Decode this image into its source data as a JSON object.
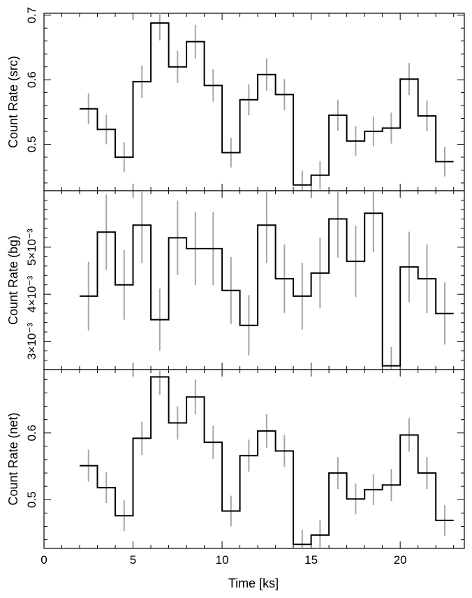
{
  "chart_data": {
    "type": "line",
    "xlabel": "Time [ks]",
    "x_ticks": [
      "0",
      "5",
      "10",
      "15",
      "20"
    ],
    "x_tick_values": [
      0,
      5,
      10,
      15,
      20
    ],
    "xlim": [
      0,
      23.6
    ],
    "bin_edges": [
      2.0,
      3.0,
      4.0,
      5.0,
      6.0,
      7.0,
      8.0,
      9.0,
      10.0,
      11.0,
      12.0,
      13.0,
      14.0,
      15.0,
      16.0,
      17.0,
      18.0,
      19.0,
      20.0,
      21.0,
      22.0,
      23.0
    ],
    "panels": [
      {
        "name": "src",
        "ylabel": "Count Rate (src)",
        "ylim": [
          0.428,
          0.703
        ],
        "y_ticks": [
          "0.5",
          "0.6",
          "0.7"
        ],
        "y_tick_values": [
          0.5,
          0.6,
          0.7
        ],
        "values": [
          0.555,
          0.523,
          0.48,
          0.597,
          0.688,
          0.62,
          0.659,
          0.591,
          0.487,
          0.569,
          0.608,
          0.577,
          0.437,
          0.452,
          0.545,
          0.505,
          0.52,
          0.525,
          0.601,
          0.544,
          0.473
        ],
        "errors": [
          0.024,
          0.023,
          0.023,
          0.025,
          0.027,
          0.025,
          0.026,
          0.025,
          0.023,
          0.024,
          0.025,
          0.024,
          0.022,
          0.022,
          0.024,
          0.023,
          0.023,
          0.024,
          0.025,
          0.024,
          0.023
        ]
      },
      {
        "name": "bg",
        "ylabel": "Count Rate (bg)",
        "ylim": [
          0.0024,
          0.0062
        ],
        "y_ticks": [
          "3×10⁻³",
          "4×10⁻³",
          "5×10⁻³"
        ],
        "y_tick_values": [
          0.003,
          0.004,
          0.005
        ],
        "values": [
          0.00396,
          0.00532,
          0.0042,
          0.00547,
          0.00346,
          0.0052,
          0.00497,
          0.00497,
          0.00408,
          0.00334,
          0.00547,
          0.00433,
          0.00396,
          0.00445,
          0.0056,
          0.0047,
          0.00572,
          0.00248,
          0.00458,
          0.00433,
          0.00359
        ],
        "errors": [
          0.00073,
          0.0008,
          0.00074,
          0.00081,
          0.00066,
          0.00079,
          0.00078,
          0.00078,
          0.00071,
          0.00064,
          0.00081,
          0.00073,
          0.00071,
          0.00075,
          0.00082,
          0.00076,
          0.00083,
          0.0004,
          0.00075,
          0.00073,
          0.00066
        ]
      },
      {
        "name": "net",
        "ylabel": "Count Rate (net)",
        "ylim": [
          0.427,
          0.695
        ],
        "y_ticks": [
          "0.5",
          "0.6"
        ],
        "y_tick_values": [
          0.5,
          0.6
        ],
        "values": [
          0.551,
          0.518,
          0.476,
          0.592,
          0.684,
          0.615,
          0.654,
          0.586,
          0.483,
          0.566,
          0.603,
          0.573,
          0.433,
          0.447,
          0.54,
          0.501,
          0.515,
          0.522,
          0.597,
          0.54,
          0.469
        ],
        "errors": [
          0.024,
          0.023,
          0.023,
          0.025,
          0.027,
          0.025,
          0.026,
          0.025,
          0.023,
          0.024,
          0.025,
          0.024,
          0.022,
          0.022,
          0.024,
          0.023,
          0.023,
          0.024,
          0.025,
          0.024,
          0.023
        ]
      }
    ],
    "colors": {
      "step_line": "#000000",
      "error_bar": "#a6a6a6",
      "frame": "#000000"
    }
  }
}
